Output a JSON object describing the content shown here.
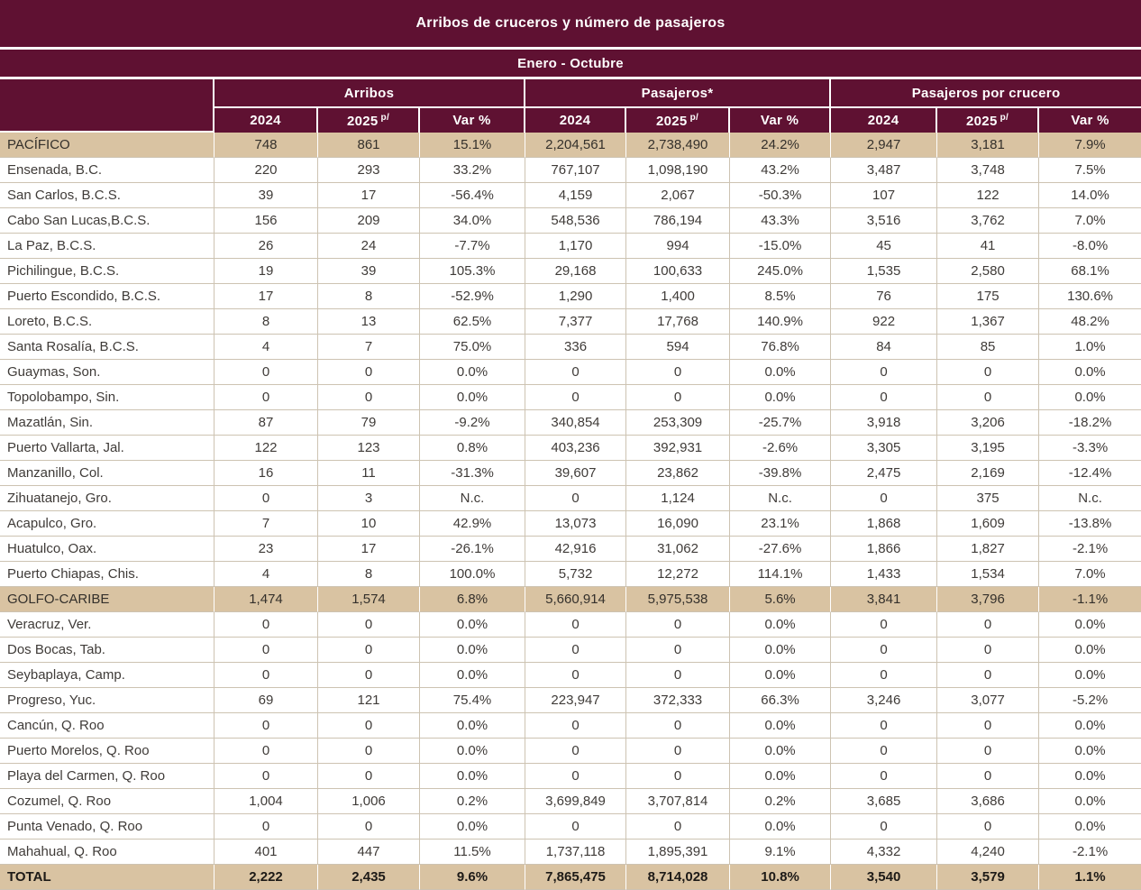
{
  "title": "Arribos de cruceros y número de pasajeros",
  "subtitle": "Enero - Octubre",
  "colors": {
    "maroon": "#5f1132",
    "tan": "#d9c3a2",
    "grid": "#cdc3b2",
    "header_text": "#ffffff",
    "body_text": "#3f3b38"
  },
  "chart_data": {
    "type": "table",
    "title": "Arribos de cruceros y número de pasajeros",
    "period": "Enero - Octubre",
    "column_groups": [
      "Arribos",
      "Pasajeros*",
      "Pasajeros por crucero"
    ],
    "sub_columns": {
      "year_2024": "2024",
      "year_2025": "2025",
      "prelim_mark": "p/",
      "var_label": "Var %"
    },
    "rows": [
      {
        "label": "PACÍFICO",
        "type": "section",
        "values": [
          "748",
          "861",
          "15.1%",
          "2,204,561",
          "2,738,490",
          "24.2%",
          "2,947",
          "3,181",
          "7.9%"
        ]
      },
      {
        "label": "Ensenada, B.C.",
        "type": "port",
        "values": [
          "220",
          "293",
          "33.2%",
          "767,107",
          "1,098,190",
          "43.2%",
          "3,487",
          "3,748",
          "7.5%"
        ]
      },
      {
        "label": "San Carlos, B.C.S.",
        "type": "port",
        "values": [
          "39",
          "17",
          "-56.4%",
          "4,159",
          "2,067",
          "-50.3%",
          "107",
          "122",
          "14.0%"
        ]
      },
      {
        "label": "Cabo San Lucas,B.C.S.",
        "type": "port",
        "values": [
          "156",
          "209",
          "34.0%",
          "548,536",
          "786,194",
          "43.3%",
          "3,516",
          "3,762",
          "7.0%"
        ]
      },
      {
        "label": "La Paz, B.C.S.",
        "type": "port",
        "values": [
          "26",
          "24",
          "-7.7%",
          "1,170",
          "994",
          "-15.0%",
          "45",
          "41",
          "-8.0%"
        ]
      },
      {
        "label": "Pichilingue, B.C.S.",
        "type": "port",
        "values": [
          "19",
          "39",
          "105.3%",
          "29,168",
          "100,633",
          "245.0%",
          "1,535",
          "2,580",
          "68.1%"
        ]
      },
      {
        "label": "Puerto Escondido, B.C.S.",
        "type": "port",
        "values": [
          "17",
          "8",
          "-52.9%",
          "1,290",
          "1,400",
          "8.5%",
          "76",
          "175",
          "130.6%"
        ]
      },
      {
        "label": "Loreto, B.C.S.",
        "type": "port",
        "values": [
          "8",
          "13",
          "62.5%",
          "7,377",
          "17,768",
          "140.9%",
          "922",
          "1,367",
          "48.2%"
        ]
      },
      {
        "label": "Santa Rosalía, B.C.S.",
        "type": "port",
        "values": [
          "4",
          "7",
          "75.0%",
          "336",
          "594",
          "76.8%",
          "84",
          "85",
          "1.0%"
        ]
      },
      {
        "label": "Guaymas, Son.",
        "type": "port",
        "values": [
          "0",
          "0",
          "0.0%",
          "0",
          "0",
          "0.0%",
          "0",
          "0",
          "0.0%"
        ]
      },
      {
        "label": "Topolobampo, Sin.",
        "type": "port",
        "values": [
          "0",
          "0",
          "0.0%",
          "0",
          "0",
          "0.0%",
          "0",
          "0",
          "0.0%"
        ]
      },
      {
        "label": "Mazatlán, Sin.",
        "type": "port",
        "values": [
          "87",
          "79",
          "-9.2%",
          "340,854",
          "253,309",
          "-25.7%",
          "3,918",
          "3,206",
          "-18.2%"
        ]
      },
      {
        "label": "Puerto Vallarta, Jal.",
        "type": "port",
        "values": [
          "122",
          "123",
          "0.8%",
          "403,236",
          "392,931",
          "-2.6%",
          "3,305",
          "3,195",
          "-3.3%"
        ]
      },
      {
        "label": "Manzanillo, Col.",
        "type": "port",
        "values": [
          "16",
          "11",
          "-31.3%",
          "39,607",
          "23,862",
          "-39.8%",
          "2,475",
          "2,169",
          "-12.4%"
        ]
      },
      {
        "label": "Zihuatanejo, Gro.",
        "type": "port",
        "values": [
          "0",
          "3",
          "N.c.",
          "0",
          "1,124",
          "N.c.",
          "0",
          "375",
          "N.c."
        ]
      },
      {
        "label": "Acapulco, Gro.",
        "type": "port",
        "values": [
          "7",
          "10",
          "42.9%",
          "13,073",
          "16,090",
          "23.1%",
          "1,868",
          "1,609",
          "-13.8%"
        ]
      },
      {
        "label": "Huatulco, Oax.",
        "type": "port",
        "values": [
          "23",
          "17",
          "-26.1%",
          "42,916",
          "31,062",
          "-27.6%",
          "1,866",
          "1,827",
          "-2.1%"
        ]
      },
      {
        "label": "Puerto Chiapas, Chis.",
        "type": "port",
        "values": [
          "4",
          "8",
          "100.0%",
          "5,732",
          "12,272",
          "114.1%",
          "1,433",
          "1,534",
          "7.0%"
        ]
      },
      {
        "label": "GOLFO-CARIBE",
        "type": "section",
        "values": [
          "1,474",
          "1,574",
          "6.8%",
          "5,660,914",
          "5,975,538",
          "5.6%",
          "3,841",
          "3,796",
          "-1.1%"
        ]
      },
      {
        "label": "Veracruz, Ver.",
        "type": "port",
        "values": [
          "0",
          "0",
          "0.0%",
          "0",
          "0",
          "0.0%",
          "0",
          "0",
          "0.0%"
        ]
      },
      {
        "label": "Dos Bocas, Tab.",
        "type": "port",
        "values": [
          "0",
          "0",
          "0.0%",
          "0",
          "0",
          "0.0%",
          "0",
          "0",
          "0.0%"
        ]
      },
      {
        "label": "Seybaplaya, Camp.",
        "type": "port",
        "values": [
          "0",
          "0",
          "0.0%",
          "0",
          "0",
          "0.0%",
          "0",
          "0",
          "0.0%"
        ]
      },
      {
        "label": "Progreso, Yuc.",
        "type": "port",
        "values": [
          "69",
          "121",
          "75.4%",
          "223,947",
          "372,333",
          "66.3%",
          "3,246",
          "3,077",
          "-5.2%"
        ]
      },
      {
        "label": "Cancún, Q. Roo",
        "type": "port",
        "values": [
          "0",
          "0",
          "0.0%",
          "0",
          "0",
          "0.0%",
          "0",
          "0",
          "0.0%"
        ]
      },
      {
        "label": "Puerto Morelos, Q. Roo",
        "type": "port",
        "values": [
          "0",
          "0",
          "0.0%",
          "0",
          "0",
          "0.0%",
          "0",
          "0",
          "0.0%"
        ]
      },
      {
        "label": "Playa del Carmen, Q. Roo",
        "type": "port",
        "values": [
          "0",
          "0",
          "0.0%",
          "0",
          "0",
          "0.0%",
          "0",
          "0",
          "0.0%"
        ]
      },
      {
        "label": "Cozumel, Q. Roo",
        "type": "port",
        "values": [
          "1,004",
          "1,006",
          "0.2%",
          "3,699,849",
          "3,707,814",
          "0.2%",
          "3,685",
          "3,686",
          "0.0%"
        ]
      },
      {
        "label": "Punta Venado, Q. Roo",
        "type": "port",
        "values": [
          "0",
          "0",
          "0.0%",
          "0",
          "0",
          "0.0%",
          "0",
          "0",
          "0.0%"
        ]
      },
      {
        "label": "Mahahual, Q. Roo",
        "type": "port",
        "values": [
          "401",
          "447",
          "11.5%",
          "1,737,118",
          "1,895,391",
          "9.1%",
          "4,332",
          "4,240",
          "-2.1%"
        ]
      },
      {
        "label": "TOTAL",
        "type": "total",
        "values": [
          "2,222",
          "2,435",
          "9.6%",
          "7,865,475",
          "8,714,028",
          "10.8%",
          "3,540",
          "3,579",
          "1.1%"
        ]
      }
    ]
  }
}
